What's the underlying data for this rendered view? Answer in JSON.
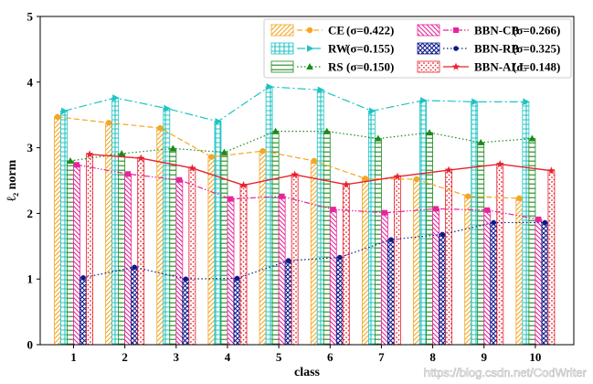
{
  "chart_data": {
    "type": "bar",
    "xlabel": "class",
    "ylabel": "ℓ₂ norm",
    "ylim": [
      0,
      5
    ],
    "yticks": [
      0,
      1,
      2,
      3,
      4,
      5
    ],
    "categories": [
      "1",
      "2",
      "3",
      "4",
      "5",
      "6",
      "7",
      "8",
      "9",
      "10"
    ],
    "legend_position": "top-right",
    "legend_columns": 2,
    "grid": false,
    "series": [
      {
        "name": "CE",
        "sigma": "(σ=0.422)",
        "color": "#f5a623",
        "pattern": "diag",
        "line": "dashed",
        "marker": "circle",
        "values": [
          3.47,
          3.38,
          3.3,
          2.86,
          2.95,
          2.8,
          2.53,
          2.52,
          2.26,
          2.23
        ]
      },
      {
        "name": "RW",
        "sigma": "(σ=0.155)",
        "color": "#1fc3c3",
        "pattern": "grid",
        "line": "dashdot",
        "marker": "triangle-right",
        "values": [
          3.56,
          3.76,
          3.6,
          3.4,
          3.93,
          3.88,
          3.56,
          3.72,
          3.7,
          3.7
        ]
      },
      {
        "name": "RS",
        "sigma": "(σ=0.150)",
        "color": "#1a8a1a",
        "pattern": "hlines",
        "line": "dotted",
        "marker": "triangle-up",
        "values": [
          2.8,
          2.91,
          2.99,
          2.93,
          3.25,
          3.25,
          3.14,
          3.23,
          3.08,
          3.14
        ]
      },
      {
        "name": "BBN-CB",
        "sigma": "(σ=0.266)",
        "color": "#e8249b",
        "pattern": "backdiag",
        "line": "dashdotdot",
        "marker": "square",
        "values": [
          2.74,
          2.6,
          2.51,
          2.22,
          2.26,
          2.06,
          2.01,
          2.07,
          2.05,
          1.91
        ]
      },
      {
        "name": "BBN-RB",
        "sigma": "(σ=0.325)",
        "color": "#0d1a8a",
        "pattern": "cross",
        "line": "dotted",
        "marker": "circle-small",
        "values": [
          1.02,
          1.18,
          1.0,
          1.01,
          1.28,
          1.33,
          1.6,
          1.68,
          1.86,
          1.86
        ]
      },
      {
        "name": "BBN-ALL",
        "sigma": "(σ=0.148)",
        "color": "#e8212d",
        "pattern": "dots",
        "line": "solid",
        "marker": "star",
        "values": [
          2.9,
          2.84,
          2.69,
          2.43,
          2.59,
          2.44,
          2.56,
          2.66,
          2.75,
          2.65
        ]
      }
    ]
  },
  "watermark": "https://blog.csdn.net/CodWriter"
}
